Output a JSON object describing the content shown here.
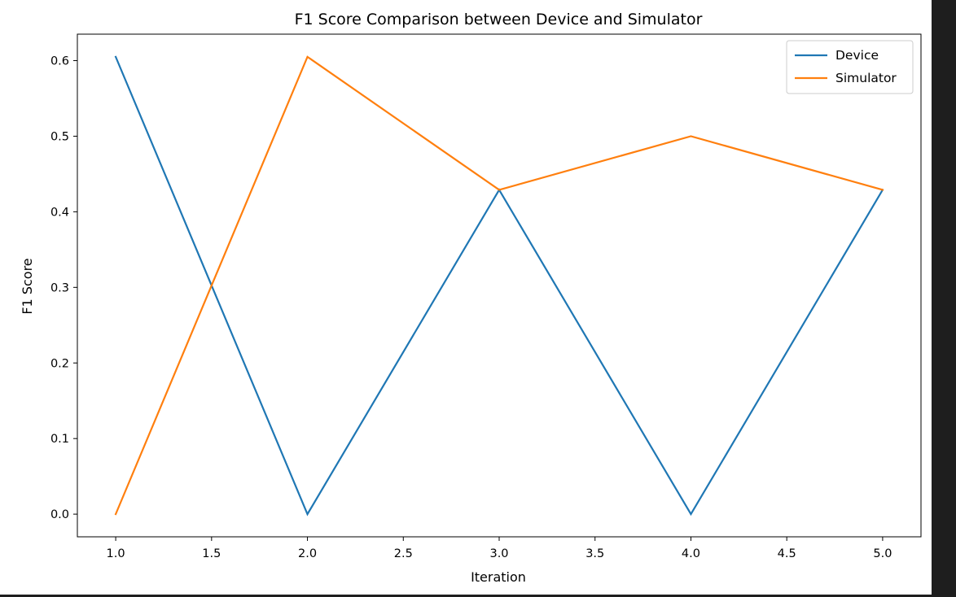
{
  "chart_data": {
    "type": "line",
    "title": "F1 Score Comparison between Device and Simulator",
    "xlabel": "Iteration",
    "ylabel": "F1 Score",
    "x": [
      1.0,
      2.0,
      3.0,
      4.0,
      5.0
    ],
    "series": [
      {
        "name": "Device",
        "values": [
          0.605,
          0.0,
          0.429,
          0.0,
          0.429
        ],
        "color": "#1f77b4"
      },
      {
        "name": "Simulator",
        "values": [
          0.0,
          0.605,
          0.429,
          0.5,
          0.429
        ],
        "color": "#ff7f0e"
      }
    ],
    "xlim": [
      0.8,
      5.2
    ],
    "ylim": [
      -0.03,
      0.635
    ],
    "xticks": [
      1.0,
      1.5,
      2.0,
      2.5,
      3.0,
      3.5,
      4.0,
      4.5,
      5.0
    ],
    "xtick_labels": [
      "1.0",
      "1.5",
      "2.0",
      "2.5",
      "3.0",
      "3.5",
      "4.0",
      "4.5",
      "5.0"
    ],
    "yticks": [
      0.0,
      0.1,
      0.2,
      0.3,
      0.4,
      0.5,
      0.6
    ],
    "ytick_labels": [
      "0.0",
      "0.1",
      "0.2",
      "0.3",
      "0.4",
      "0.5",
      "0.6"
    ],
    "grid": false,
    "legend_position": "top-right"
  }
}
